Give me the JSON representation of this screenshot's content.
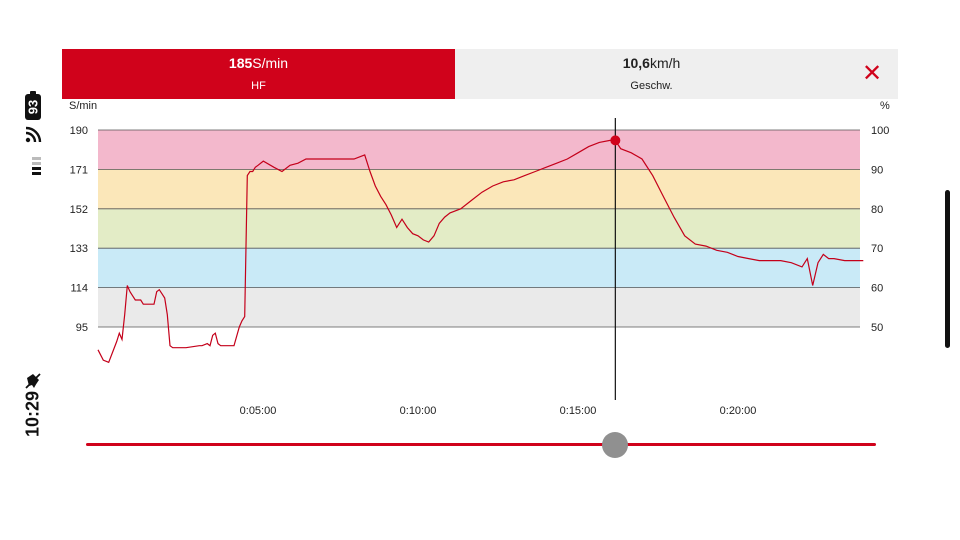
{
  "status_bar": {
    "battery": "93",
    "time": "10:29",
    "icons": [
      "wifi-icon",
      "signal-icon",
      "mute-icon"
    ]
  },
  "header": {
    "hf_value": "185",
    "hf_unit": "S/min",
    "hf_label": "HF",
    "speed_value": "10,6",
    "speed_unit": "km/h",
    "speed_label": "Geschw.",
    "close_icon": "close-icon"
  },
  "colors": {
    "accent": "#d0021b",
    "zone_max": "#f3b8cc",
    "zone_hard": "#fbe7b9",
    "zone_moderate": "#e3ecc6",
    "zone_light": "#c9eaf7",
    "zone_very_light": "#eaeaea"
  },
  "chart_data": {
    "type": "line",
    "left_unit": "S/min",
    "right_unit": "%",
    "y_ticks_left": [
      "190",
      "171",
      "152",
      "133",
      "114",
      "95"
    ],
    "y_ticks_right": [
      "100",
      "90",
      "80",
      "70",
      "60",
      "50"
    ],
    "x_ticks": [
      "0:05:00",
      "0:10:00",
      "0:15:00",
      "0:20:00"
    ],
    "ylim": [
      70,
      190
    ],
    "xlim_seconds": [
      0,
      1445
    ],
    "zones": [
      {
        "from": 171,
        "to": 190
      },
      {
        "from": 152,
        "to": 171
      },
      {
        "from": 133,
        "to": 152
      },
      {
        "from": 114,
        "to": 133
      },
      {
        "from": 95,
        "to": 114
      }
    ],
    "cursor": {
      "time": "0:16:10",
      "value": 185
    },
    "series": [
      {
        "x": [
          "0:00:00",
          "0:00:10",
          "0:00:20",
          "0:00:35",
          "0:00:40",
          "0:00:45",
          "0:00:50",
          "0:00:55",
          "0:01:00",
          "0:01:05",
          "0:01:10",
          "0:01:15",
          "0:01:20",
          "0:01:25",
          "0:01:45",
          "0:01:50",
          "0:01:55",
          "0:02:00",
          "0:02:05",
          "0:02:10",
          "0:02:15",
          "0:02:20",
          "0:02:25",
          "0:02:30",
          "0:02:35",
          "0:02:40",
          "0:02:45",
          "0:03:10",
          "0:03:15",
          "0:03:25",
          "0:03:30",
          "0:03:35",
          "0:03:40",
          "0:03:45",
          "0:03:50",
          "0:03:55",
          "0:04:00",
          "0:04:15",
          "0:04:25",
          "0:04:30",
          "0:04:35",
          "0:04:40",
          "0:04:45",
          "0:04:50",
          "0:04:55",
          "0:05:00",
          "0:05:10",
          "0:05:30",
          "0:05:45",
          "0:06:00",
          "0:06:15",
          "0:06:30",
          "0:07:00",
          "0:07:30",
          "0:08:00",
          "0:08:20",
          "0:08:30",
          "0:08:40",
          "0:08:50",
          "0:09:00",
          "0:09:10",
          "0:09:20",
          "0:09:30",
          "0:09:40",
          "0:09:50",
          "0:10:00",
          "0:10:10",
          "0:10:20",
          "0:10:30",
          "0:10:40",
          "0:10:50",
          "0:11:00",
          "0:11:20",
          "0:11:40",
          "0:12:00",
          "0:12:20",
          "0:12:40",
          "0:13:00",
          "0:13:20",
          "0:13:40",
          "0:14:00",
          "0:14:20",
          "0:14:40",
          "0:15:00",
          "0:15:20",
          "0:15:40",
          "0:16:00",
          "0:16:10",
          "0:16:20",
          "0:16:40",
          "0:17:00",
          "0:17:20",
          "0:17:40",
          "0:18:00",
          "0:18:20",
          "0:18:40",
          "0:19:00",
          "0:19:20",
          "0:19:40",
          "0:20:00",
          "0:20:20",
          "0:20:40",
          "0:21:00",
          "0:21:20",
          "0:21:40",
          "0:22:00",
          "0:22:10",
          "0:22:20",
          "0:22:30",
          "0:22:40",
          "0:22:50",
          "0:23:00",
          "0:23:20",
          "0:23:40",
          "0:23:55"
        ],
        "y": [
          84,
          79,
          78,
          88,
          92,
          89,
          101,
          115,
          112,
          110,
          108,
          108,
          108,
          106,
          106,
          112,
          113,
          111,
          109,
          101,
          86,
          85,
          85,
          85,
          85,
          85,
          85,
          86,
          86,
          87,
          86,
          91,
          92,
          87,
          86,
          86,
          86,
          86,
          95,
          98,
          100,
          168,
          170,
          170,
          172,
          173,
          175,
          172,
          170,
          173,
          174,
          176,
          176,
          176,
          176,
          178,
          170,
          163,
          158,
          154,
          149,
          143,
          147,
          143,
          140,
          139,
          137,
          136,
          139,
          145,
          148,
          150,
          152,
          156,
          160,
          163,
          165,
          166,
          168,
          170,
          172,
          174,
          176,
          179,
          182,
          184,
          185,
          185,
          181,
          179,
          176,
          168,
          158,
          148,
          139,
          135,
          134,
          132,
          131,
          129,
          128,
          127,
          127,
          127,
          126,
          124,
          128,
          115,
          126,
          130,
          128,
          128,
          127,
          127,
          127
        ]
      }
    ]
  }
}
